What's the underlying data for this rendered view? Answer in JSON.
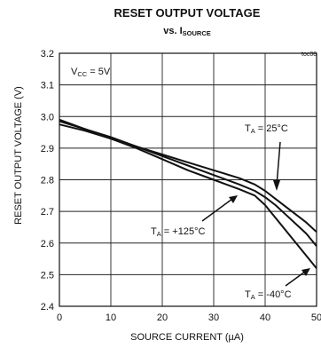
{
  "chart_data": {
    "type": "line",
    "title": "RESET OUTPUT VOLTAGE",
    "subtitle_prefix": "vs. I",
    "subtitle_sub": "SOURCE",
    "xlabel": "SOURCE CURRENT (µA)",
    "ylabel": "RESET OUTPUT VOLTAGE (V)",
    "figure_id": "toc08",
    "xlim": [
      0,
      50
    ],
    "ylim": [
      2.4,
      3.2
    ],
    "x_ticks": [
      0,
      10,
      20,
      30,
      40,
      50
    ],
    "y_ticks": [
      2.4,
      2.5,
      2.6,
      2.7,
      2.8,
      2.9,
      3.0,
      3.1,
      3.2
    ],
    "grid": true,
    "conditions": {
      "prefix": "V",
      "sub": "CC",
      "suffix": " = 5V"
    },
    "series": [
      {
        "name": "25°C",
        "label_prefix": "T",
        "label_sub": "A",
        "label_suffix": " = 25°C",
        "x": [
          0,
          5,
          10,
          15,
          20,
          25,
          30,
          35,
          38,
          40,
          42,
          44,
          46,
          48,
          50
        ],
        "values": [
          2.985,
          2.96,
          2.935,
          2.905,
          2.875,
          2.845,
          2.815,
          2.785,
          2.765,
          2.745,
          2.72,
          2.69,
          2.66,
          2.63,
          2.59
        ]
      },
      {
        "name": "+125°C",
        "label_prefix": "T",
        "label_sub": "A",
        "label_suffix": " = +125°C",
        "x": [
          0,
          5,
          10,
          15,
          20,
          25,
          30,
          35,
          38,
          40,
          42,
          44,
          46,
          48,
          50
        ],
        "values": [
          2.975,
          2.955,
          2.93,
          2.905,
          2.88,
          2.855,
          2.83,
          2.805,
          2.785,
          2.765,
          2.74,
          2.715,
          2.69,
          2.665,
          2.635
        ]
      },
      {
        "name": "-40°C",
        "label_prefix": "T",
        "label_sub": "A",
        "label_suffix": " = -40°C",
        "x": [
          0,
          5,
          10,
          15,
          20,
          25,
          30,
          35,
          38,
          40,
          42,
          44,
          46,
          48,
          50
        ],
        "values": [
          2.99,
          2.96,
          2.93,
          2.9,
          2.865,
          2.83,
          2.8,
          2.77,
          2.75,
          2.72,
          2.68,
          2.64,
          2.6,
          2.56,
          2.52
        ]
      }
    ]
  }
}
